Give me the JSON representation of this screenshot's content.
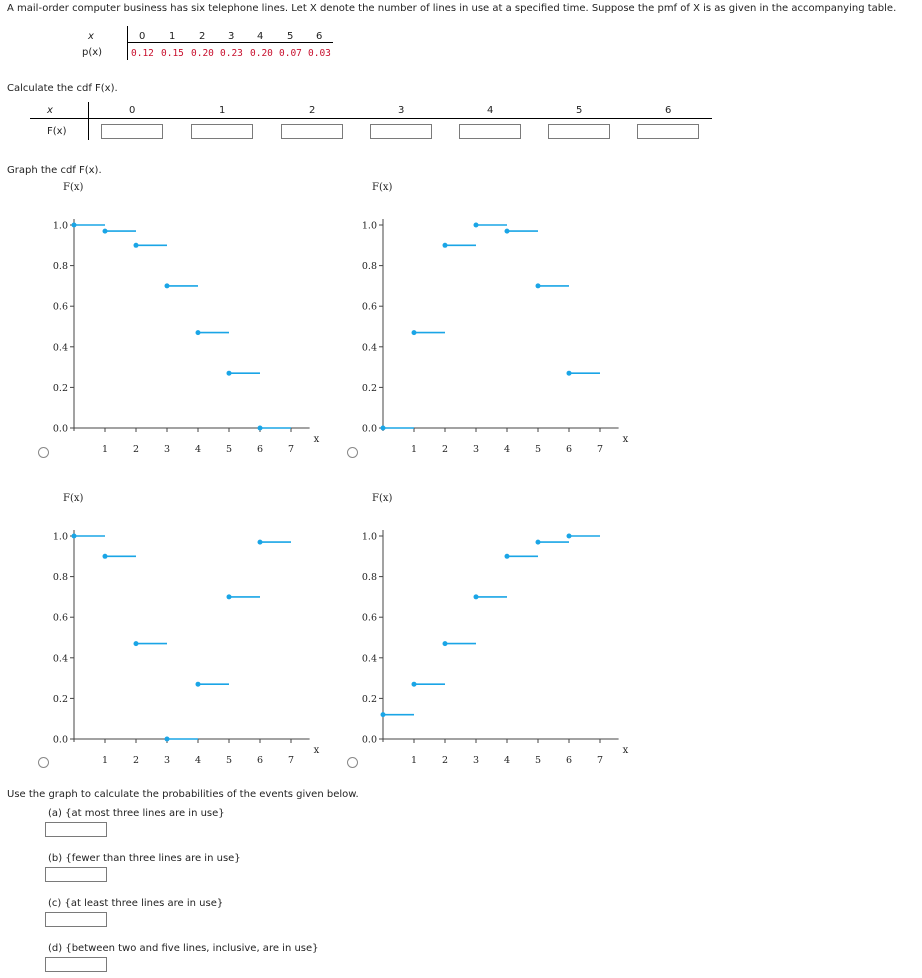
{
  "intro": "A mail-order computer business has six telephone lines. Let X denote the number of lines in use at a specified time. Suppose the pmf of X is as given in the accompanying table.",
  "pmf": {
    "x_label": "x",
    "p_label": "p(x)",
    "x_values": [
      "0",
      "1",
      "2",
      "3",
      "4",
      "5",
      "6"
    ],
    "p_values": [
      "0.12",
      "0.15",
      "0.20",
      "0.23",
      "0.20",
      "0.07",
      "0.03"
    ]
  },
  "cdf_prompt": "Calculate the cdf F(x).",
  "cdf_table": {
    "x_label": "x",
    "f_label": "F(x)",
    "x_values": [
      "0",
      "1",
      "2",
      "3",
      "4",
      "5",
      "6"
    ]
  },
  "graph_prompt": "Graph the cdf F(x).",
  "graph_axis": {
    "y_title": "F(x)",
    "x_title": "x",
    "y_ticks": [
      "1.0",
      "0.8",
      "0.6",
      "0.4",
      "0.2",
      "0.0"
    ],
    "x_ticks": [
      "1",
      "2",
      "3",
      "4",
      "5",
      "6",
      "7"
    ]
  },
  "chart_data": [
    {
      "type": "line",
      "title": "",
      "xlabel": "x",
      "ylabel": "F(x)",
      "xlim": [
        0,
        7
      ],
      "ylim": [
        0,
        1
      ],
      "steps": [
        [
          0,
          1.0
        ],
        [
          1,
          0.97
        ],
        [
          2,
          0.9
        ],
        [
          3,
          0.7
        ],
        [
          4,
          0.47
        ],
        [
          5,
          0.27
        ],
        [
          6,
          0.0
        ]
      ]
    },
    {
      "type": "line",
      "title": "",
      "xlabel": "x",
      "ylabel": "F(x)",
      "xlim": [
        0,
        7
      ],
      "ylim": [
        0,
        1
      ],
      "steps": [
        [
          0,
          0.0
        ],
        [
          1,
          0.47
        ],
        [
          2,
          0.9
        ],
        [
          3,
          1.0
        ],
        [
          4,
          0.97
        ],
        [
          5,
          0.7
        ],
        [
          6,
          0.27
        ]
      ]
    },
    {
      "type": "line",
      "title": "",
      "xlabel": "x",
      "ylabel": "F(x)",
      "xlim": [
        0,
        7
      ],
      "ylim": [
        0,
        1
      ],
      "steps": [
        [
          0,
          1.0
        ],
        [
          1,
          0.9
        ],
        [
          2,
          0.47
        ],
        [
          3,
          0.0
        ],
        [
          4,
          0.27
        ],
        [
          5,
          0.7
        ],
        [
          6,
          0.97
        ]
      ]
    },
    {
      "type": "line",
      "title": "",
      "xlabel": "x",
      "ylabel": "F(x)",
      "xlim": [
        0,
        7
      ],
      "ylim": [
        0,
        1
      ],
      "steps": [
        [
          0,
          0.12
        ],
        [
          1,
          0.27
        ],
        [
          2,
          0.47
        ],
        [
          3,
          0.7
        ],
        [
          4,
          0.9
        ],
        [
          5,
          0.97
        ],
        [
          6,
          1.0
        ]
      ]
    }
  ],
  "use_graph_prompt": "Use the graph to calculate the probabilities of the events given below.",
  "questions": [
    "(a) {at most three lines are in use}",
    "(b) {fewer than three lines are in use}",
    "(c) {at least three lines are in use}",
    "(d) {between two and five lines, inclusive, are in use}"
  ],
  "colors": {
    "step": "#1aa5e6",
    "pmf_values": "#c8102e"
  }
}
